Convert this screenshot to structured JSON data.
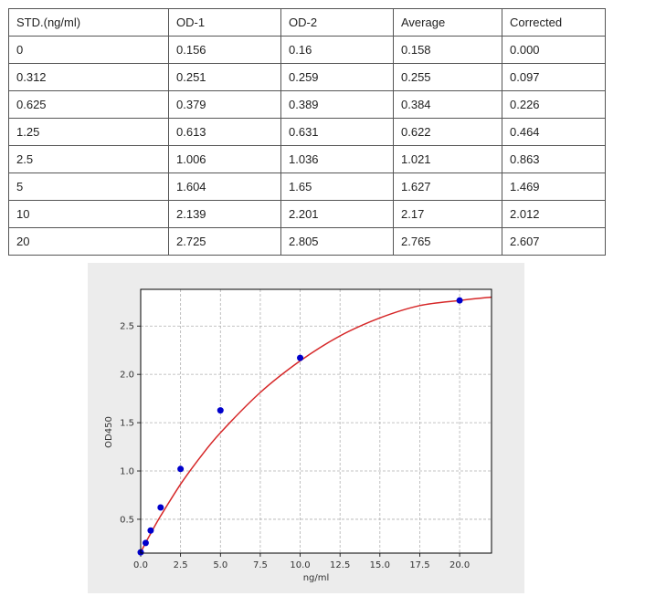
{
  "table": {
    "headers": [
      "STD.(ng/ml)",
      "OD-1",
      "OD-2",
      "Average",
      "Corrected"
    ],
    "rows": [
      [
        "0",
        "0.156",
        "0.16",
        "0.158",
        "0.000"
      ],
      [
        "0.312",
        "0.251",
        "0.259",
        "0.255",
        "0.097"
      ],
      [
        "0.625",
        "0.379",
        "0.389",
        "0.384",
        "0.226"
      ],
      [
        "1.25",
        "0.613",
        "0.631",
        "0.622",
        "0.464"
      ],
      [
        "2.5",
        "1.006",
        "1.036",
        "1.021",
        "0.863"
      ],
      [
        "5",
        "1.604",
        "1.65",
        "1.627",
        "1.469"
      ],
      [
        "10",
        "2.139",
        "2.201",
        "2.17",
        "2.012"
      ],
      [
        "20",
        "2.725",
        "2.805",
        "2.765",
        "2.607"
      ]
    ]
  },
  "chart_data": {
    "type": "scatter",
    "title": "",
    "xlabel": "ng/ml",
    "ylabel": "OD450",
    "xlim": [
      0,
      22
    ],
    "ylim": [
      0.15,
      2.88
    ],
    "xticks": [
      "0.0",
      "2.5",
      "5.0",
      "7.5",
      "10.0",
      "12.5",
      "15.0",
      "17.5",
      "20.0"
    ],
    "yticks": [
      "0.5",
      "1.0",
      "1.5",
      "2.0",
      "2.5"
    ],
    "grid": true,
    "series": [
      {
        "x": [
          0,
          0.312,
          0.625,
          1.25,
          2.5,
          5,
          10,
          20
        ],
        "y": [
          0.158,
          0.255,
          0.384,
          0.622,
          1.021,
          1.627,
          2.17,
          2.765
        ],
        "color": "#0000cc"
      }
    ],
    "fit_curve": {
      "x": [
        0,
        0.312,
        0.625,
        1.25,
        2.5,
        3.75,
        5,
        7.5,
        10,
        12.5,
        15,
        17.5,
        20,
        22
      ],
      "y": [
        0.158,
        0.258,
        0.352,
        0.534,
        0.862,
        1.146,
        1.396,
        1.813,
        2.139,
        2.398,
        2.584,
        2.712,
        2.765,
        2.8
      ],
      "color": "#d62728"
    }
  }
}
